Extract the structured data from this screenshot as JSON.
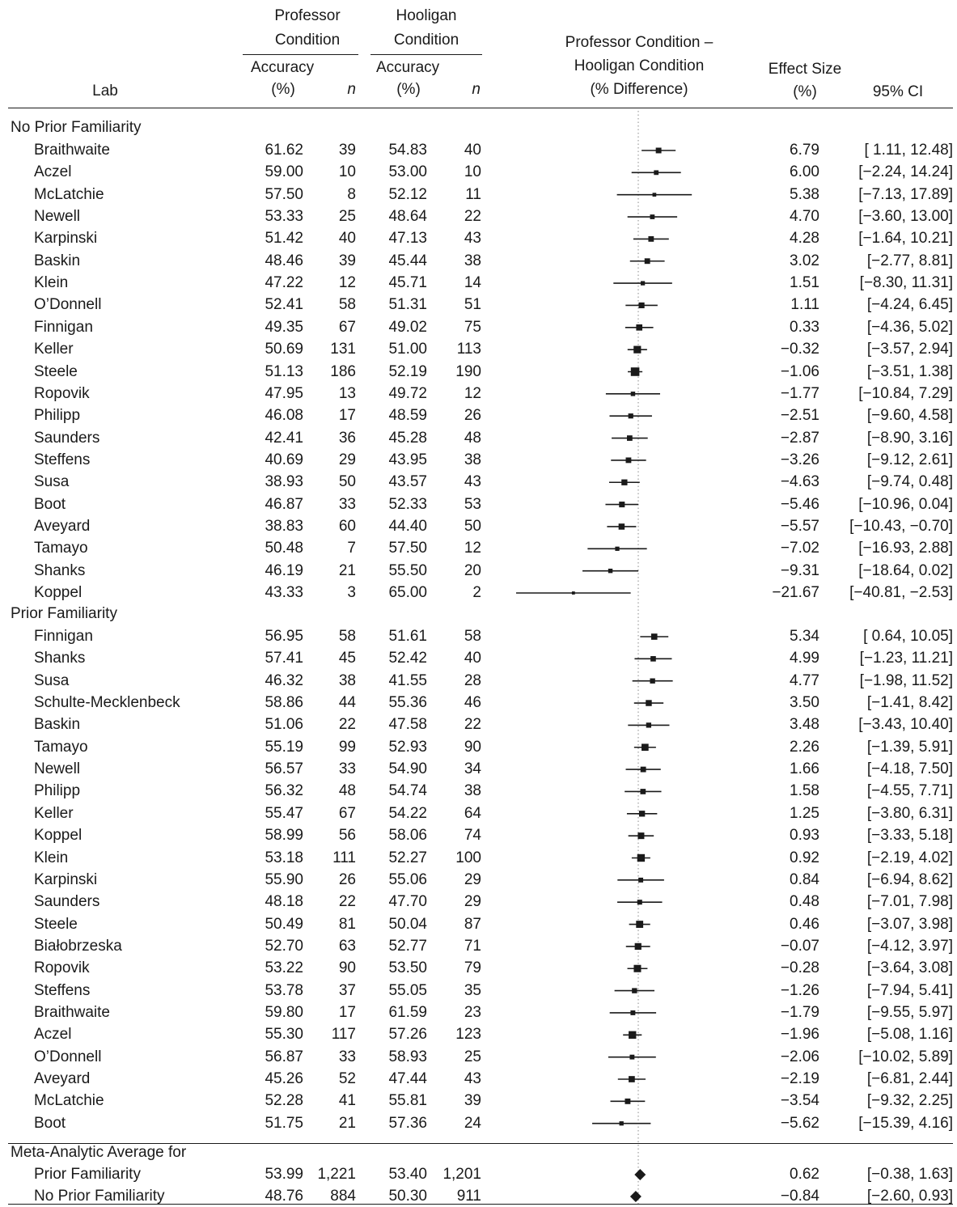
{
  "header": {
    "lab": "Lab",
    "professor_line1": "Professor",
    "professor_line2": "Condition",
    "hooligan_line1": "Hooligan",
    "hooligan_line2": "Condition",
    "accuracy": "Accuracy",
    "pct": "(%)",
    "n": "n",
    "diff_line1": "Professor Condition –",
    "diff_line2": "Hooligan Condition",
    "diff_line3": "(% Difference)",
    "effect_line1": "Effect Size",
    "effect_line2": "(%)",
    "ci": "95% CI"
  },
  "chart_data": {
    "type": "forest",
    "reference_line": 0,
    "groups": [
      {
        "label": "No Prior Familiarity",
        "rows": [
          {
            "lab": "Braithwaite",
            "prof_acc": "61.62",
            "prof_n": "39",
            "hool_acc": "54.83",
            "hool_n": "40",
            "effect": "6.79",
            "ci": "[ 1.11, 12.48]",
            "est": 6.79,
            "lo": 1.11,
            "hi": 12.48
          },
          {
            "lab": "Aczel",
            "prof_acc": "59.00",
            "prof_n": "10",
            "hool_acc": "53.00",
            "hool_n": "10",
            "effect": "6.00",
            "ci": "[−2.24, 14.24]",
            "est": 6.0,
            "lo": -2.24,
            "hi": 14.24
          },
          {
            "lab": "McLatchie",
            "prof_acc": "57.50",
            "prof_n": "8",
            "hool_acc": "52.12",
            "hool_n": "11",
            "effect": "5.38",
            "ci": "[−7.13, 17.89]",
            "est": 5.38,
            "lo": -7.13,
            "hi": 17.89
          },
          {
            "lab": "Newell",
            "prof_acc": "53.33",
            "prof_n": "25",
            "hool_acc": "48.64",
            "hool_n": "22",
            "effect": "4.70",
            "ci": "[−3.60, 13.00]",
            "est": 4.7,
            "lo": -3.6,
            "hi": 13.0
          },
          {
            "lab": "Karpinski",
            "prof_acc": "51.42",
            "prof_n": "40",
            "hool_acc": "47.13",
            "hool_n": "43",
            "effect": "4.28",
            "ci": "[−1.64, 10.21]",
            "est": 4.28,
            "lo": -1.64,
            "hi": 10.21
          },
          {
            "lab": "Baskin",
            "prof_acc": "48.46",
            "prof_n": "39",
            "hool_acc": "45.44",
            "hool_n": "38",
            "effect": "3.02",
            "ci": "[−2.77, 8.81]",
            "est": 3.02,
            "lo": -2.77,
            "hi": 8.81
          },
          {
            "lab": "Klein",
            "prof_acc": "47.22",
            "prof_n": "12",
            "hool_acc": "45.71",
            "hool_n": "14",
            "effect": "1.51",
            "ci": "[−8.30, 11.31]",
            "est": 1.51,
            "lo": -8.3,
            "hi": 11.31
          },
          {
            "lab": "O’Donnell",
            "prof_acc": "52.41",
            "prof_n": "58",
            "hool_acc": "51.31",
            "hool_n": "51",
            "effect": "1.11",
            "ci": "[−4.24, 6.45]",
            "est": 1.11,
            "lo": -4.24,
            "hi": 6.45
          },
          {
            "lab": "Finnigan",
            "prof_acc": "49.35",
            "prof_n": "67",
            "hool_acc": "49.02",
            "hool_n": "75",
            "effect": "0.33",
            "ci": "[−4.36, 5.02]",
            "est": 0.33,
            "lo": -4.36,
            "hi": 5.02
          },
          {
            "lab": "Keller",
            "prof_acc": "50.69",
            "prof_n": "131",
            "hool_acc": "51.00",
            "hool_n": "113",
            "effect": "−0.32",
            "ci": "[−3.57, 2.94]",
            "est": -0.32,
            "lo": -3.57,
            "hi": 2.94
          },
          {
            "lab": "Steele",
            "prof_acc": "51.13",
            "prof_n": "186",
            "hool_acc": "52.19",
            "hool_n": "190",
            "effect": "−1.06",
            "ci": "[−3.51, 1.38]",
            "est": -1.06,
            "lo": -3.51,
            "hi": 1.38
          },
          {
            "lab": "Ropovik",
            "prof_acc": "47.95",
            "prof_n": "13",
            "hool_acc": "49.72",
            "hool_n": "12",
            "effect": "−1.77",
            "ci": "[−10.84, 7.29]",
            "est": -1.77,
            "lo": -10.84,
            "hi": 7.29
          },
          {
            "lab": "Philipp",
            "prof_acc": "46.08",
            "prof_n": "17",
            "hool_acc": "48.59",
            "hool_n": "26",
            "effect": "−2.51",
            "ci": "[−9.60, 4.58]",
            "est": -2.51,
            "lo": -9.6,
            "hi": 4.58
          },
          {
            "lab": "Saunders",
            "prof_acc": "42.41",
            "prof_n": "36",
            "hool_acc": "45.28",
            "hool_n": "48",
            "effect": "−2.87",
            "ci": "[−8.90, 3.16]",
            "est": -2.87,
            "lo": -8.9,
            "hi": 3.16
          },
          {
            "lab": "Steffens",
            "prof_acc": "40.69",
            "prof_n": "29",
            "hool_acc": "43.95",
            "hool_n": "38",
            "effect": "−3.26",
            "ci": "[−9.12, 2.61]",
            "est": -3.26,
            "lo": -9.12,
            "hi": 2.61
          },
          {
            "lab": "Susa",
            "prof_acc": "38.93",
            "prof_n": "50",
            "hool_acc": "43.57",
            "hool_n": "43",
            "effect": "−4.63",
            "ci": "[−9.74, 0.48]",
            "est": -4.63,
            "lo": -9.74,
            "hi": 0.48
          },
          {
            "lab": "Boot",
            "prof_acc": "46.87",
            "prof_n": "33",
            "hool_acc": "52.33",
            "hool_n": "53",
            "effect": "−5.46",
            "ci": "[−10.96, 0.04]",
            "est": -5.46,
            "lo": -10.96,
            "hi": 0.04
          },
          {
            "lab": "Aveyard",
            "prof_acc": "38.83",
            "prof_n": "60",
            "hool_acc": "44.40",
            "hool_n": "50",
            "effect": "−5.57",
            "ci": "[−10.43, −0.70]",
            "est": -5.57,
            "lo": -10.43,
            "hi": -0.7
          },
          {
            "lab": "Tamayo",
            "prof_acc": "50.48",
            "prof_n": "7",
            "hool_acc": "57.50",
            "hool_n": "12",
            "effect": "−7.02",
            "ci": "[−16.93, 2.88]",
            "est": -7.02,
            "lo": -16.93,
            "hi": 2.88
          },
          {
            "lab": "Shanks",
            "prof_acc": "46.19",
            "prof_n": "21",
            "hool_acc": "55.50",
            "hool_n": "20",
            "effect": "−9.31",
            "ci": "[−18.64, 0.02]",
            "est": -9.31,
            "lo": -18.64,
            "hi": 0.02
          },
          {
            "lab": "Koppel",
            "prof_acc": "43.33",
            "prof_n": "3",
            "hool_acc": "65.00",
            "hool_n": "2",
            "effect": "−21.67",
            "ci": "[−40.81, −2.53]",
            "est": -21.67,
            "lo": -40.81,
            "hi": -2.53
          }
        ]
      },
      {
        "label": "Prior Familiarity",
        "rows": [
          {
            "lab": "Finnigan",
            "prof_acc": "56.95",
            "prof_n": "58",
            "hool_acc": "51.61",
            "hool_n": "58",
            "effect": "5.34",
            "ci": "[ 0.64, 10.05]",
            "est": 5.34,
            "lo": 0.64,
            "hi": 10.05
          },
          {
            "lab": "Shanks",
            "prof_acc": "57.41",
            "prof_n": "45",
            "hool_acc": "52.42",
            "hool_n": "40",
            "effect": "4.99",
            "ci": "[−1.23, 11.21]",
            "est": 4.99,
            "lo": -1.23,
            "hi": 11.21
          },
          {
            "lab": "Susa",
            "prof_acc": "46.32",
            "prof_n": "38",
            "hool_acc": "41.55",
            "hool_n": "28",
            "effect": "4.77",
            "ci": "[−1.98, 11.52]",
            "est": 4.77,
            "lo": -1.98,
            "hi": 11.52
          },
          {
            "lab": "Schulte-Mecklenbeck",
            "prof_acc": "58.86",
            "prof_n": "44",
            "hool_acc": "55.36",
            "hool_n": "46",
            "effect": "3.50",
            "ci": "[−1.41, 8.42]",
            "est": 3.5,
            "lo": -1.41,
            "hi": 8.42
          },
          {
            "lab": "Baskin",
            "prof_acc": "51.06",
            "prof_n": "22",
            "hool_acc": "47.58",
            "hool_n": "22",
            "effect": "3.48",
            "ci": "[−3.43, 10.40]",
            "est": 3.48,
            "lo": -3.43,
            "hi": 10.4
          },
          {
            "lab": "Tamayo",
            "prof_acc": "55.19",
            "prof_n": "99",
            "hool_acc": "52.93",
            "hool_n": "90",
            "effect": "2.26",
            "ci": "[−1.39, 5.91]",
            "est": 2.26,
            "lo": -1.39,
            "hi": 5.91
          },
          {
            "lab": "Newell",
            "prof_acc": "56.57",
            "prof_n": "33",
            "hool_acc": "54.90",
            "hool_n": "34",
            "effect": "1.66",
            "ci": "[−4.18, 7.50]",
            "est": 1.66,
            "lo": -4.18,
            "hi": 7.5
          },
          {
            "lab": "Philipp",
            "prof_acc": "56.32",
            "prof_n": "48",
            "hool_acc": "54.74",
            "hool_n": "38",
            "effect": "1.58",
            "ci": "[−4.55, 7.71]",
            "est": 1.58,
            "lo": -4.55,
            "hi": 7.71
          },
          {
            "lab": "Keller",
            "prof_acc": "55.47",
            "prof_n": "67",
            "hool_acc": "54.22",
            "hool_n": "64",
            "effect": "1.25",
            "ci": "[−3.80, 6.31]",
            "est": 1.25,
            "lo": -3.8,
            "hi": 6.31
          },
          {
            "lab": "Koppel",
            "prof_acc": "58.99",
            "prof_n": "56",
            "hool_acc": "58.06",
            "hool_n": "74",
            "effect": "0.93",
            "ci": "[−3.33, 5.18]",
            "est": 0.93,
            "lo": -3.33,
            "hi": 5.18
          },
          {
            "lab": "Klein",
            "prof_acc": "53.18",
            "prof_n": "111",
            "hool_acc": "52.27",
            "hool_n": "100",
            "effect": "0.92",
            "ci": "[−2.19, 4.02]",
            "est": 0.92,
            "lo": -2.19,
            "hi": 4.02
          },
          {
            "lab": "Karpinski",
            "prof_acc": "55.90",
            "prof_n": "26",
            "hool_acc": "55.06",
            "hool_n": "29",
            "effect": "0.84",
            "ci": "[−6.94, 8.62]",
            "est": 0.84,
            "lo": -6.94,
            "hi": 8.62
          },
          {
            "lab": "Saunders",
            "prof_acc": "48.18",
            "prof_n": "22",
            "hool_acc": "47.70",
            "hool_n": "29",
            "effect": "0.48",
            "ci": "[−7.01, 7.98]",
            "est": 0.48,
            "lo": -7.01,
            "hi": 7.98
          },
          {
            "lab": "Steele",
            "prof_acc": "50.49",
            "prof_n": "81",
            "hool_acc": "50.04",
            "hool_n": "87",
            "effect": "0.46",
            "ci": "[−3.07, 3.98]",
            "est": 0.46,
            "lo": -3.07,
            "hi": 3.98
          },
          {
            "lab": "Białobrzeska",
            "prof_acc": "52.70",
            "prof_n": "63",
            "hool_acc": "52.77",
            "hool_n": "71",
            "effect": "−0.07",
            "ci": "[−4.12, 3.97]",
            "est": -0.07,
            "lo": -4.12,
            "hi": 3.97
          },
          {
            "lab": "Ropovik",
            "prof_acc": "53.22",
            "prof_n": "90",
            "hool_acc": "53.50",
            "hool_n": "79",
            "effect": "−0.28",
            "ci": "[−3.64, 3.08]",
            "est": -0.28,
            "lo": -3.64,
            "hi": 3.08
          },
          {
            "lab": "Steffens",
            "prof_acc": "53.78",
            "prof_n": "37",
            "hool_acc": "55.05",
            "hool_n": "35",
            "effect": "−1.26",
            "ci": "[−7.94, 5.41]",
            "est": -1.26,
            "lo": -7.94,
            "hi": 5.41
          },
          {
            "lab": "Braithwaite",
            "prof_acc": "59.80",
            "prof_n": "17",
            "hool_acc": "61.59",
            "hool_n": "23",
            "effect": "−1.79",
            "ci": "[−9.55, 5.97]",
            "est": -1.79,
            "lo": -9.55,
            "hi": 5.97
          },
          {
            "lab": "Aczel",
            "prof_acc": "55.30",
            "prof_n": "117",
            "hool_acc": "57.26",
            "hool_n": "123",
            "effect": "−1.96",
            "ci": "[−5.08, 1.16]",
            "est": -1.96,
            "lo": -5.08,
            "hi": 1.16
          },
          {
            "lab": "O’Donnell",
            "prof_acc": "56.87",
            "prof_n": "33",
            "hool_acc": "58.93",
            "hool_n": "25",
            "effect": "−2.06",
            "ci": "[−10.02, 5.89]",
            "est": -2.06,
            "lo": -10.02,
            "hi": 5.89
          },
          {
            "lab": "Aveyard",
            "prof_acc": "45.26",
            "prof_n": "52",
            "hool_acc": "47.44",
            "hool_n": "43",
            "effect": "−2.19",
            "ci": "[−6.81, 2.44]",
            "est": -2.19,
            "lo": -6.81,
            "hi": 2.44
          },
          {
            "lab": "McLatchie",
            "prof_acc": "52.28",
            "prof_n": "41",
            "hool_acc": "55.81",
            "hool_n": "39",
            "effect": "−3.54",
            "ci": "[−9.32, 2.25]",
            "est": -3.54,
            "lo": -9.32,
            "hi": 2.25
          },
          {
            "lab": "Boot",
            "prof_acc": "51.75",
            "prof_n": "21",
            "hool_acc": "57.36",
            "hool_n": "24",
            "effect": "−5.62",
            "ci": "[−15.39, 4.16]",
            "est": -5.62,
            "lo": -15.39,
            "hi": 4.16
          }
        ]
      }
    ],
    "meta": {
      "label": "Meta-Analytic Average for",
      "rows": [
        {
          "lab": "Prior Familiarity",
          "prof_acc": "53.99",
          "prof_n": "1,221",
          "hool_acc": "53.40",
          "hool_n": "1,201",
          "effect": "0.62",
          "ci": "[−0.38, 1.63]",
          "est": 0.62,
          "lo": -0.38,
          "hi": 1.63
        },
        {
          "lab": "No Prior Familiarity",
          "prof_acc": "48.76",
          "prof_n": "884",
          "hool_acc": "50.30",
          "hool_n": "911",
          "effect": "−0.84",
          "ci": "[−2.60, 0.93]",
          "est": -0.84,
          "lo": -2.6,
          "hi": 0.93
        }
      ]
    }
  }
}
